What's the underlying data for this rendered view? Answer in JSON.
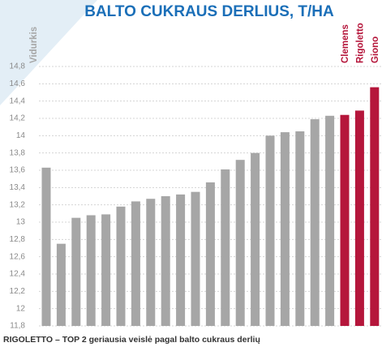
{
  "chart_data": {
    "type": "bar",
    "title": "BALTO CUKRAUS DERLIUS, T/HA",
    "caption": "RIGOLETTO – TOP 2 geriausia veislė pagal balto cukraus derlių",
    "categories": [
      "Vidurkis",
      null,
      null,
      null,
      null,
      null,
      null,
      null,
      null,
      null,
      null,
      null,
      null,
      null,
      null,
      null,
      null,
      null,
      null,
      null,
      "Clemens",
      "Rigoletto",
      "Giono"
    ],
    "values": [
      13.63,
      12.75,
      13.05,
      13.08,
      13.09,
      13.18,
      13.24,
      13.27,
      13.3,
      13.32,
      13.35,
      13.46,
      13.61,
      13.72,
      13.8,
      14.0,
      14.04,
      14.05,
      14.19,
      14.23,
      14.24,
      14.29,
      14.56
    ],
    "colors": [
      "#a6a6a6",
      "#a6a6a6",
      "#a6a6a6",
      "#a6a6a6",
      "#a6a6a6",
      "#a6a6a6",
      "#a6a6a6",
      "#a6a6a6",
      "#a6a6a6",
      "#a6a6a6",
      "#a6a6a6",
      "#a6a6a6",
      "#a6a6a6",
      "#a6a6a6",
      "#a6a6a6",
      "#a6a6a6",
      "#a6a6a6",
      "#a6a6a6",
      "#a6a6a6",
      "#a6a6a6",
      "#b5163b",
      "#b5163b",
      "#b5163b"
    ],
    "ylim": [
      11.8,
      14.8
    ],
    "yticks": [
      {
        "value": 11.8,
        "label": "11,8"
      },
      12,
      {
        "value": 12.2,
        "label": "12,2"
      },
      {
        "value": 12.4,
        "label": "12,4"
      },
      {
        "value": 12.6,
        "label": "12,6"
      },
      {
        "value": 12.8,
        "label": "12,8"
      },
      13,
      {
        "value": 13.2,
        "label": "13,2"
      },
      {
        "value": 13.4,
        "label": "13,4"
      },
      {
        "value": 13.6,
        "label": "13,6"
      },
      {
        "value": 13.8,
        "label": "13,8"
      },
      14,
      {
        "value": 14.2,
        "label": "14,2"
      },
      {
        "value": 14.4,
        "label": "14,4"
      },
      {
        "value": 14.6,
        "label": "14,6"
      },
      {
        "value": 14.8,
        "label": "14,8"
      }
    ],
    "grid": true
  }
}
